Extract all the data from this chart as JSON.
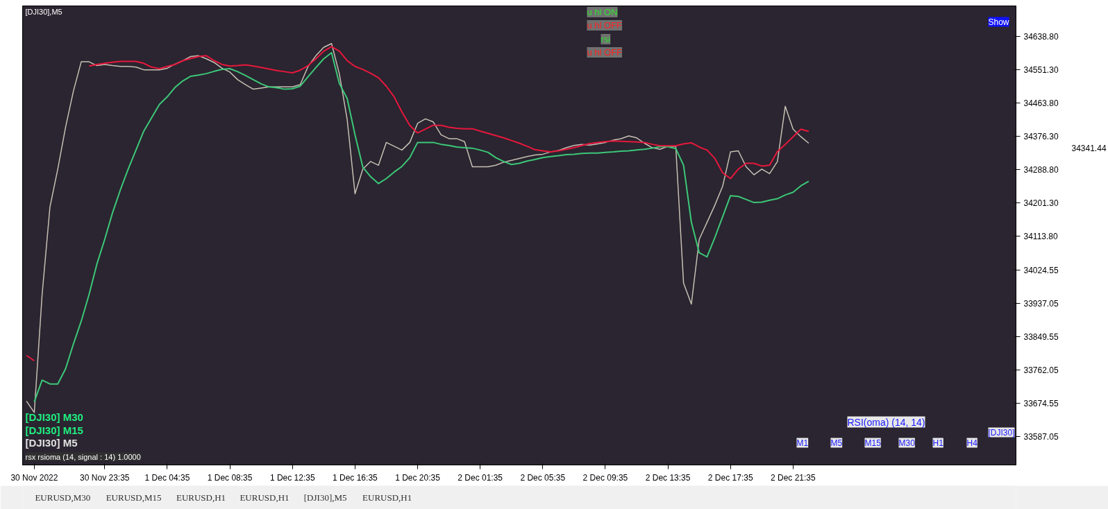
{
  "chart_data": {
    "type": "line",
    "title": "[DJI30],M5",
    "categories": [
      null,
      "30 Nov 2022",
      null,
      null,
      null,
      null,
      null,
      null,
      null,
      null,
      "30 Nov 23:35",
      null,
      null,
      null,
      null,
      null,
      null,
      null,
      "1 Dec 04:35",
      null,
      null,
      null,
      null,
      null,
      null,
      null,
      "1 Dec 08:35",
      null,
      null,
      null,
      null,
      null,
      null,
      null,
      "1 Dec 12:35",
      null,
      null,
      null,
      null,
      null,
      null,
      null,
      "1 Dec 16:35",
      null,
      null,
      null,
      null,
      null,
      null,
      null,
      "1 Dec 20:35",
      null,
      null,
      null,
      null,
      null,
      null,
      null,
      "2 Dec 01:35",
      null,
      null,
      null,
      null,
      null,
      null,
      null,
      "2 Dec 05:35",
      null,
      null,
      null,
      null,
      null,
      null,
      null,
      "2 Dec 09:35",
      null,
      null,
      null,
      null,
      null,
      null,
      null,
      "2 Dec 13:35",
      null,
      null,
      null,
      null,
      null,
      null,
      null,
      "2 Dec 17:35",
      null,
      null,
      null,
      null,
      null,
      null,
      null,
      "2 Dec 21:35",
      null,
      null,
      null,
      null,
      null,
      null,
      null,
      null,
      null,
      null,
      null,
      null,
      null,
      null,
      null,
      null,
      null,
      null,
      null,
      null,
      null,
      null,
      null,
      null,
      null,
      null,
      null,
      null
    ],
    "ylim": [
      33512,
      34719
    ],
    "yticks": [
      {
        "value": 34638.8,
        "label": "34638.80"
      },
      {
        "value": 34551.3,
        "label": "34551.30"
      },
      {
        "value": 34463.8,
        "label": "34463.80"
      },
      {
        "value": 34376.3,
        "label": "34376.30"
      },
      {
        "value": 34288.8,
        "label": "34288.80"
      },
      {
        "value": 34201.3,
        "label": "34201.30"
      },
      {
        "value": 34113.8,
        "label": "34113.80"
      },
      34024.55,
      33937.05,
      33849.55,
      33762.05,
      33674.55,
      33587.05
    ],
    "series": [
      {
        "color": "#c8c0b4",
        "values": [
          33680,
          33650,
          33960,
          34190,
          34290,
          34400,
          34495,
          34572,
          34572,
          34562,
          34565,
          34562,
          34560,
          34560,
          34558,
          34551,
          34551,
          34551,
          34555,
          34566,
          34575,
          34586,
          34588,
          34580,
          34570,
          34555,
          34545,
          34525,
          34512,
          34500,
          34503,
          34506,
          34506,
          34506,
          34506,
          34512,
          34560,
          34588,
          34610,
          34620,
          34540,
          34420,
          34225,
          34290,
          34310,
          34300,
          34360,
          34350,
          34340,
          34360,
          34410,
          34422,
          34414,
          34380,
          34370,
          34370,
          34362,
          34296,
          34296,
          34296,
          34300,
          34308,
          34313,
          34318,
          34323,
          34327,
          34329,
          34335,
          34339,
          34346,
          34352,
          34355,
          34353,
          34356,
          34360,
          34366,
          34370,
          34377,
          34372,
          34358,
          34346,
          34342,
          34350,
          34350,
          33990,
          33935,
          34105,
          34150,
          34195,
          34245,
          34335,
          34338,
          34296,
          34275,
          34290,
          34278,
          34310,
          34455,
          34395,
          34375,
          34358,
          null,
          null,
          null,
          null,
          null,
          null,
          null,
          null,
          null,
          null,
          null,
          null,
          null,
          null,
          null,
          null,
          null,
          null,
          null,
          null,
          null,
          null,
          null,
          null,
          null,
          null
        ]
      },
      {
        "color": "#3cc878",
        "values": [
          null,
          33678,
          33735,
          33725,
          33725,
          33765,
          33830,
          33890,
          33960,
          34040,
          34105,
          34175,
          34235,
          34290,
          34340,
          34390,
          34425,
          34460,
          34480,
          34505,
          34522,
          34534,
          34537,
          34541,
          34547,
          34552,
          34554,
          34546,
          34536,
          34525,
          34514,
          34506,
          34504,
          34500,
          34501,
          34508,
          34533,
          34557,
          34580,
          34596,
          34515,
          34475,
          34380,
          34295,
          34270,
          34252,
          34265,
          34282,
          34297,
          34320,
          34360,
          34360,
          34360,
          34355,
          34352,
          34348,
          34346,
          34345,
          34340,
          34334,
          34320,
          34310,
          34302,
          34305,
          34311,
          34315,
          34320,
          34323,
          34325,
          34328,
          34329,
          34331,
          34332,
          34332,
          34334,
          34335,
          34337,
          34338,
          34340,
          34342,
          34345,
          34349,
          34349,
          34344,
          34300,
          34150,
          34070,
          34059,
          34110,
          34165,
          34220,
          34218,
          34210,
          34202,
          34203,
          34208,
          34212,
          34222,
          34229,
          34246,
          34258,
          null,
          null,
          null,
          null,
          null,
          null,
          null,
          null,
          null,
          null,
          null,
          null,
          null,
          null,
          null,
          null,
          null,
          null,
          null,
          null,
          null,
          null,
          null,
          null,
          null,
          null
        ]
      },
      {
        "color": "#e8173c",
        "values": [
          33800,
          33786,
          null,
          null,
          null,
          null,
          null,
          null,
          34561,
          34565,
          34568,
          34571,
          34573,
          34573,
          34573,
          34568,
          34558,
          34554,
          34560,
          34565,
          34575,
          34581,
          34586,
          34588,
          34575,
          34565,
          34561,
          34562,
          34564,
          34561,
          34557,
          34553,
          34549,
          34546,
          34543,
          34550,
          34562,
          34580,
          34600,
          34612,
          34600,
          34575,
          34560,
          34552,
          34542,
          34530,
          34508,
          34480,
          34440,
          34405,
          34385,
          34395,
          34405,
          34405,
          34400,
          34397,
          34396,
          34396,
          34390,
          34384,
          34378,
          34372,
          34365,
          34358,
          34350,
          34341,
          34338,
          34335,
          34338,
          34342,
          34346,
          34352,
          34357,
          34360,
          34362,
          34364,
          34363,
          34362,
          34361,
          34360,
          34355,
          34351,
          34351,
          34351,
          34356,
          34359,
          34348,
          34340,
          34318,
          34280,
          34265,
          34290,
          34305,
          34305,
          34298,
          34300,
          34336,
          34355,
          34375,
          34395,
          34389,
          null,
          null,
          null,
          null,
          null,
          null,
          null,
          null,
          null,
          null,
          null,
          null,
          null,
          null,
          null,
          null,
          null,
          null,
          null,
          null,
          null,
          null,
          null,
          null,
          null,
          null
        ]
      }
    ],
    "annotations": [
      "34341.44",
      "u hl ON",
      "u hl OFF",
      "rsi",
      "u hl OFF",
      "Show",
      "[DJI30] M30",
      "[DJI30] M15",
      "[DJI30] M5",
      "RSI(oma) (14, 14)",
      "M1",
      "M5",
      "M15",
      "M30",
      "H1",
      "H4",
      "[DJI30]",
      "rsx rsioma (14, signal : 14) 1.0000",
      "EURUSD,M30",
      "EURUSD,M15",
      "EURUSD,H1",
      "EURUSD,H1",
      "[DJI30],M5",
      "EURUSD,H1"
    ]
  }
}
